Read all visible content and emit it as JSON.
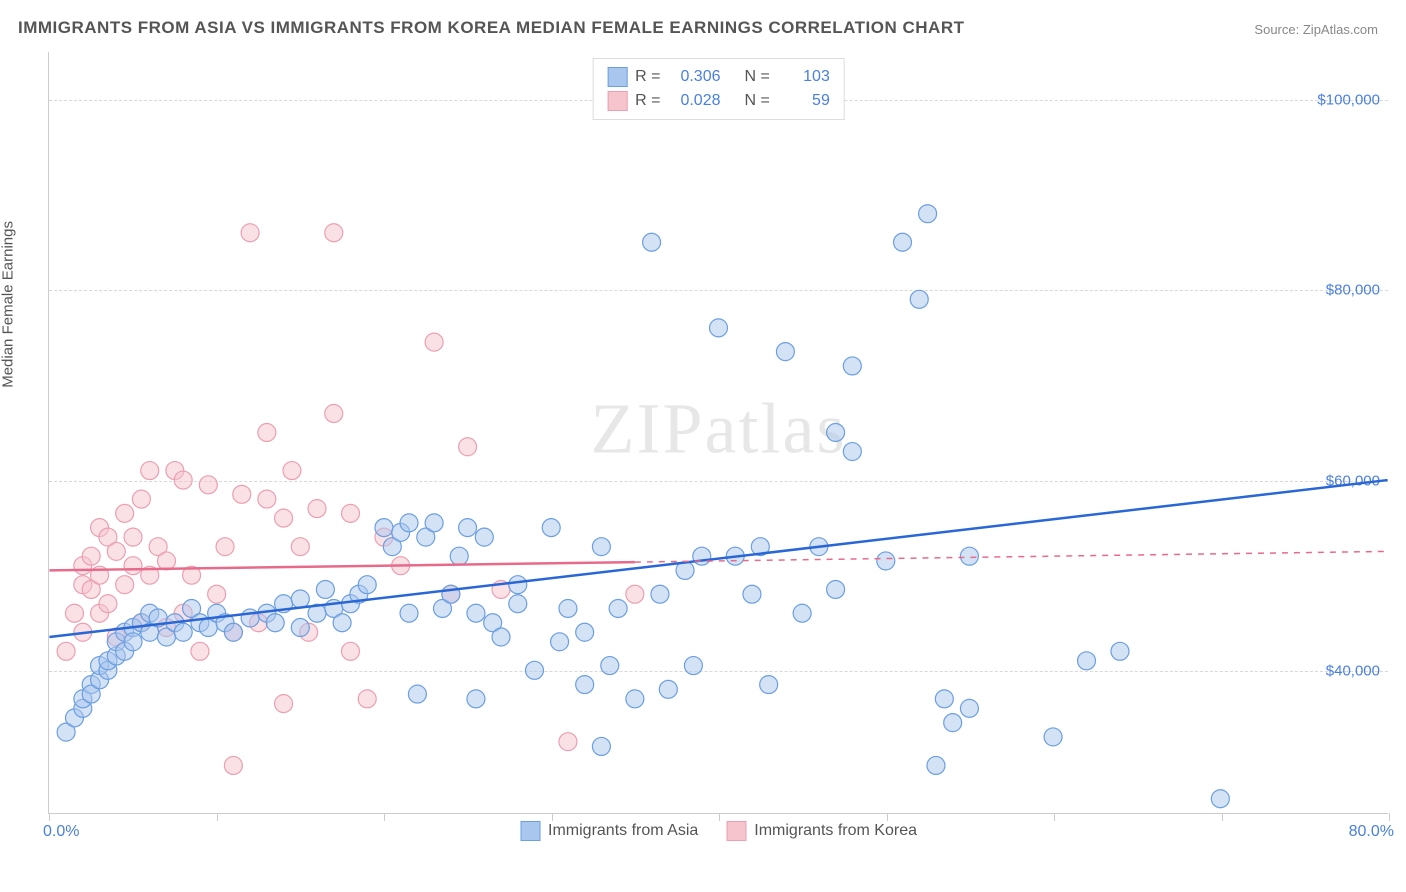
{
  "title": "IMMIGRANTS FROM ASIA VS IMMIGRANTS FROM KOREA MEDIAN FEMALE EARNINGS CORRELATION CHART",
  "source_label": "Source:",
  "source_name": "ZipAtlas.com",
  "y_axis_label": "Median Female Earnings",
  "watermark": "ZIPatlas",
  "chart": {
    "type": "scatter",
    "xlim": [
      0,
      80
    ],
    "ylim": [
      25000,
      105000
    ],
    "x_ticks": [
      0,
      10,
      20,
      30,
      40,
      50,
      60,
      70,
      80
    ],
    "y_gridlines": [
      40000,
      60000,
      80000,
      100000
    ],
    "y_tick_labels": [
      "$40,000",
      "$60,000",
      "$80,000",
      "$100,000"
    ],
    "x_tick_labels": {
      "start": "0.0%",
      "end": "80.0%"
    },
    "background_color": "#ffffff",
    "grid_color": "#d8d8d8",
    "marker_radius": 9,
    "marker_opacity": 0.5,
    "line_width": 2.5
  },
  "series": [
    {
      "name": "Immigrants from Asia",
      "color_fill": "#a9c6ee",
      "color_stroke": "#6b9fe0",
      "line_color": "#2966d6",
      "R": "0.306",
      "N": "103",
      "trend": {
        "x1": 0,
        "y1": 43500,
        "x2": 80,
        "y2": 60000,
        "dashed_from_x": null
      },
      "points": [
        [
          1,
          33500
        ],
        [
          1.5,
          35000
        ],
        [
          2,
          36000
        ],
        [
          2,
          37000
        ],
        [
          2.5,
          38500
        ],
        [
          2.5,
          37500
        ],
        [
          3,
          39000
        ],
        [
          3,
          40500
        ],
        [
          3.5,
          40000
        ],
        [
          3.5,
          41000
        ],
        [
          4,
          41500
        ],
        [
          4,
          43000
        ],
        [
          4.5,
          42000
        ],
        [
          4.5,
          44000
        ],
        [
          5,
          44500
        ],
        [
          5,
          43000
        ],
        [
          5.5,
          45000
        ],
        [
          6,
          44000
        ],
        [
          6,
          46000
        ],
        [
          6.5,
          45500
        ],
        [
          7,
          43500
        ],
        [
          7.5,
          45000
        ],
        [
          8,
          44000
        ],
        [
          8.5,
          46500
        ],
        [
          9,
          45000
        ],
        [
          9.5,
          44500
        ],
        [
          10,
          46000
        ],
        [
          10.5,
          45000
        ],
        [
          11,
          44000
        ],
        [
          12,
          45500
        ],
        [
          13,
          46000
        ],
        [
          13.5,
          45000
        ],
        [
          14,
          47000
        ],
        [
          15,
          47500
        ],
        [
          15,
          44500
        ],
        [
          16,
          46000
        ],
        [
          16.5,
          48500
        ],
        [
          17,
          46500
        ],
        [
          17.5,
          45000
        ],
        [
          18,
          47000
        ],
        [
          18.5,
          48000
        ],
        [
          19,
          49000
        ],
        [
          20,
          55000
        ],
        [
          20.5,
          53000
        ],
        [
          21,
          54500
        ],
        [
          21.5,
          46000
        ],
        [
          21.5,
          55500
        ],
        [
          22,
          37500
        ],
        [
          22.5,
          54000
        ],
        [
          23,
          55500
        ],
        [
          23.5,
          46500
        ],
        [
          24,
          48000
        ],
        [
          24.5,
          52000
        ],
        [
          25,
          55000
        ],
        [
          25.5,
          46000
        ],
        [
          25.5,
          37000
        ],
        [
          26,
          54000
        ],
        [
          26.5,
          45000
        ],
        [
          27,
          43500
        ],
        [
          28,
          49000
        ],
        [
          28,
          47000
        ],
        [
          29,
          40000
        ],
        [
          30,
          55000
        ],
        [
          30.5,
          43000
        ],
        [
          31,
          46500
        ],
        [
          32,
          38500
        ],
        [
          32,
          44000
        ],
        [
          33,
          53000
        ],
        [
          33,
          32000
        ],
        [
          33.5,
          40500
        ],
        [
          34,
          46500
        ],
        [
          35,
          37000
        ],
        [
          36,
          85000
        ],
        [
          36.5,
          48000
        ],
        [
          37,
          38000
        ],
        [
          38,
          50500
        ],
        [
          38.5,
          40500
        ],
        [
          39,
          52000
        ],
        [
          40,
          76000
        ],
        [
          41,
          52000
        ],
        [
          42,
          48000
        ],
        [
          42.5,
          53000
        ],
        [
          43,
          38500
        ],
        [
          44,
          73500
        ],
        [
          45,
          46000
        ],
        [
          46,
          53000
        ],
        [
          47,
          65000
        ],
        [
          47,
          48500
        ],
        [
          48,
          72000
        ],
        [
          48,
          63000
        ],
        [
          50,
          51500
        ],
        [
          51,
          85000
        ],
        [
          52,
          79000
        ],
        [
          52.5,
          88000
        ],
        [
          53,
          30000
        ],
        [
          53.5,
          37000
        ],
        [
          54,
          34500
        ],
        [
          55,
          52000
        ],
        [
          55,
          36000
        ],
        [
          60,
          33000
        ],
        [
          62,
          41000
        ],
        [
          64,
          42000
        ],
        [
          70,
          26500
        ]
      ]
    },
    {
      "name": "Immigrants from Korea",
      "color_fill": "#f5c4cd",
      "color_stroke": "#eb9fb0",
      "line_color": "#e86a8a",
      "R": "0.028",
      "N": "59",
      "trend": {
        "x1": 0,
        "y1": 50500,
        "x2": 80,
        "y2": 52500,
        "dashed_from_x": 35
      },
      "points": [
        [
          1,
          42000
        ],
        [
          1.5,
          46000
        ],
        [
          2,
          49000
        ],
        [
          2,
          51000
        ],
        [
          2,
          44000
        ],
        [
          2.5,
          48500
        ],
        [
          2.5,
          52000
        ],
        [
          3,
          46000
        ],
        [
          3,
          50000
        ],
        [
          3,
          55000
        ],
        [
          3.5,
          54000
        ],
        [
          3.5,
          47000
        ],
        [
          4,
          52500
        ],
        [
          4,
          43500
        ],
        [
          4.5,
          49000
        ],
        [
          4.5,
          56500
        ],
        [
          5,
          51000
        ],
        [
          5,
          54000
        ],
        [
          5.5,
          45000
        ],
        [
          5.5,
          58000
        ],
        [
          6,
          50000
        ],
        [
          6,
          61000
        ],
        [
          6.5,
          53000
        ],
        [
          7,
          44500
        ],
        [
          7,
          51500
        ],
        [
          7.5,
          61000
        ],
        [
          8,
          46000
        ],
        [
          8,
          60000
        ],
        [
          8.5,
          50000
        ],
        [
          9,
          42000
        ],
        [
          9.5,
          59500
        ],
        [
          10,
          48000
        ],
        [
          10.5,
          53000
        ],
        [
          11,
          30000
        ],
        [
          11,
          44000
        ],
        [
          11.5,
          58500
        ],
        [
          12,
          86000
        ],
        [
          12.5,
          45000
        ],
        [
          13,
          58000
        ],
        [
          13,
          65000
        ],
        [
          14,
          36500
        ],
        [
          14,
          56000
        ],
        [
          14.5,
          61000
        ],
        [
          15,
          53000
        ],
        [
          15.5,
          44000
        ],
        [
          16,
          57000
        ],
        [
          17,
          67000
        ],
        [
          17,
          86000
        ],
        [
          18,
          42000
        ],
        [
          18,
          56500
        ],
        [
          19,
          37000
        ],
        [
          20,
          54000
        ],
        [
          21,
          51000
        ],
        [
          23,
          74500
        ],
        [
          24,
          48000
        ],
        [
          25,
          63500
        ],
        [
          27,
          48500
        ],
        [
          31,
          32500
        ],
        [
          35,
          48000
        ]
      ]
    }
  ],
  "legend_top": {
    "r_label": "R =",
    "n_label": "N ="
  },
  "legend_bottom": [
    {
      "label": "Immigrants from Asia",
      "fill": "#a9c6ee",
      "stroke": "#6b9fe0"
    },
    {
      "label": "Immigrants from Korea",
      "fill": "#f5c4cd",
      "stroke": "#eb9fb0"
    }
  ]
}
